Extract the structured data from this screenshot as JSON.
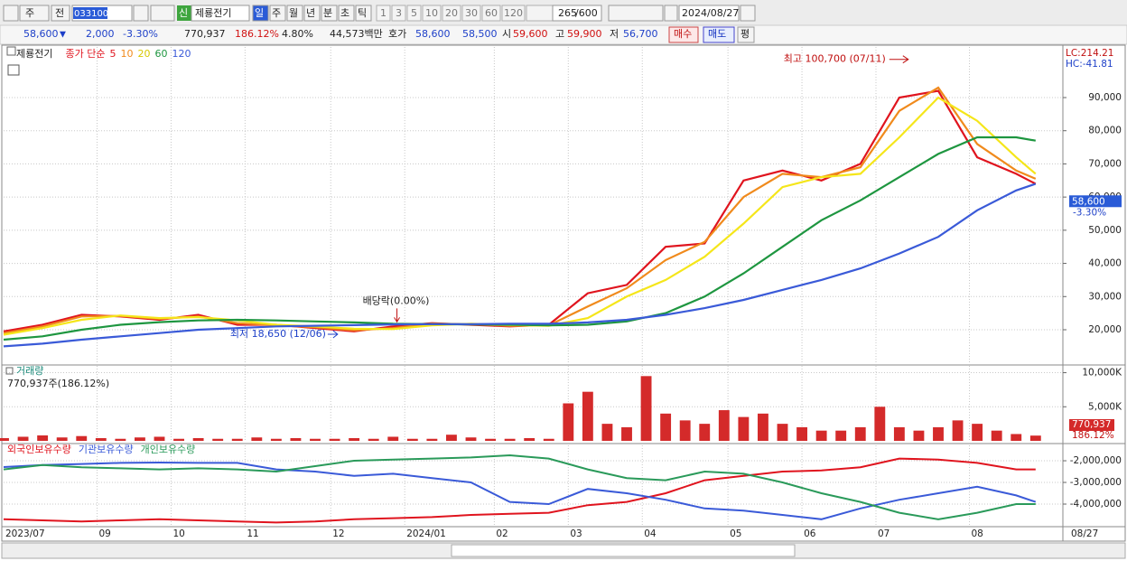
{
  "toolbar": {
    "period": "주",
    "prev": "전",
    "code": "033100",
    "new_tag": "신",
    "stock": "제룡전기",
    "intervals": [
      "일",
      "주",
      "월",
      "년",
      "분",
      "초",
      "틱"
    ],
    "minutes": [
      "1",
      "3",
      "5",
      "10",
      "20",
      "30",
      "60",
      "120"
    ],
    "count": "265",
    "max": "/600",
    "date": "2024/08/27"
  },
  "quote": {
    "price": "58,600",
    "arrow": "▼",
    "change": "2,000",
    "rate": "-3.30%",
    "volume": "770,937",
    "volume_rate": "186.12%",
    "turnover": "4.80%",
    "amount": "44,573백만",
    "ask_label": "호가",
    "ask": "58,600",
    "bid": "58,500",
    "open_label": "시",
    "open": "59,600",
    "high_label": "고",
    "high": "59,900",
    "low_label": "저",
    "low": "56,700",
    "buy": "매수",
    "sell": "매도",
    "avg": "평"
  },
  "chart_data": [
    {
      "type": "line",
      "name": "제룡전기",
      "legend_title": "종가 단순",
      "grid": true,
      "x": [
        0,
        10,
        20,
        30,
        40,
        50,
        60,
        70,
        80,
        90,
        100,
        110,
        120,
        130,
        140,
        150,
        160,
        170,
        180,
        190,
        200,
        210,
        220,
        230,
        240,
        250,
        260,
        265
      ],
      "xlim": [
        0,
        272
      ],
      "ylim": [
        9650,
        105250
      ],
      "yticks": [
        {
          "value": 20000,
          "label": "20,000"
        },
        {
          "value": 30000,
          "label": "30,000"
        },
        {
          "value": 40000,
          "label": "40,000"
        },
        {
          "value": 50000,
          "label": "50,000"
        },
        {
          "value": 60000,
          "label": "60,000"
        },
        {
          "value": 70000,
          "label": "70,000"
        },
        {
          "value": 80000,
          "label": "80,000"
        },
        {
          "value": 90000,
          "label": "90,000"
        }
      ],
      "series": [
        {
          "name": "5",
          "color": "#e0141e",
          "values": [
            19500,
            21500,
            24500,
            24000,
            23000,
            24500,
            21500,
            21500,
            20500,
            19500,
            21000,
            22000,
            21500,
            21000,
            21500,
            31000,
            33500,
            45000,
            46000,
            65000,
            68000,
            65000,
            70000,
            90000,
            92000,
            72000,
            67000,
            64000
          ]
        },
        {
          "name": "10",
          "color": "#f08a1c",
          "values": [
            19000,
            21000,
            24000,
            24200,
            23300,
            24000,
            22000,
            21300,
            20800,
            19800,
            20500,
            21800,
            21700,
            21200,
            21300,
            27000,
            32500,
            41000,
            46500,
            60000,
            67000,
            66000,
            69000,
            86000,
            93000,
            76000,
            68000,
            65500
          ]
        },
        {
          "name": "20",
          "color": "#f5e61a",
          "values": [
            18500,
            20500,
            23000,
            24300,
            23500,
            23800,
            22800,
            21500,
            21000,
            20300,
            20200,
            21300,
            21800,
            21400,
            21200,
            23500,
            30000,
            35000,
            42000,
            52000,
            63000,
            66000,
            67000,
            78000,
            90000,
            83000,
            72000,
            67000
          ]
        },
        {
          "name": "60",
          "color": "#1e9640",
          "values": [
            17000,
            18000,
            20000,
            21500,
            22300,
            22800,
            23000,
            22800,
            22500,
            22200,
            21800,
            21700,
            21600,
            21500,
            21300,
            21500,
            22500,
            25000,
            30000,
            37000,
            45000,
            53000,
            59000,
            66000,
            73000,
            78000,
            78000,
            77000
          ]
        },
        {
          "name": "120",
          "color": "#3a5ad8",
          "values": [
            15000,
            15800,
            17000,
            18000,
            19000,
            20000,
            20500,
            21000,
            21200,
            21400,
            21600,
            21700,
            21700,
            21800,
            21800,
            22200,
            23000,
            24500,
            26500,
            29000,
            32000,
            35000,
            38500,
            43000,
            48000,
            56000,
            62000,
            64000
          ]
        }
      ],
      "high": {
        "label": "최고 100,700 (07/11)",
        "x": 233,
        "value": 100700
      },
      "low": {
        "label": "최저 18,650 (12/06)",
        "x": 86,
        "value": 18650
      },
      "dividend": {
        "label": "배당락(0.00%)",
        "x": 101,
        "value": 21000
      },
      "lc": "LC:214.21",
      "hc": "HC:-41.81",
      "last": {
        "value": 58600,
        "label": "58,600"
      },
      "last_rate": "-3.30%"
    },
    {
      "type": "bar",
      "name": "거래량",
      "summary": "770,937주(186.12%)",
      "color": "#d42a2a",
      "grid": true,
      "x": [
        0,
        5,
        10,
        15,
        20,
        25,
        30,
        35,
        40,
        45,
        50,
        55,
        60,
        65,
        70,
        75,
        80,
        85,
        90,
        95,
        100,
        105,
        110,
        115,
        120,
        125,
        130,
        135,
        140,
        145,
        150,
        155,
        160,
        165,
        170,
        175,
        180,
        185,
        190,
        195,
        200,
        205,
        210,
        215,
        220,
        225,
        230,
        235,
        240,
        245,
        250,
        255,
        260,
        265
      ],
      "xlim": [
        0,
        272
      ],
      "ylim": [
        0,
        11000000
      ],
      "yticks": [
        {
          "value": 5000000,
          "label": "5,000K"
        },
        {
          "value": 10000000,
          "label": "10,000K"
        }
      ],
      "values": [
        400000,
        600000,
        800000,
        500000,
        700000,
        400000,
        300000,
        500000,
        600000,
        300000,
        400000,
        300000,
        300000,
        500000,
        300000,
        400000,
        300000,
        300000,
        400000,
        300000,
        600000,
        300000,
        300000,
        900000,
        500000,
        300000,
        300000,
        400000,
        300000,
        5500000,
        7200000,
        2500000,
        2000000,
        9500000,
        4000000,
        3000000,
        2500000,
        4500000,
        3500000,
        4000000,
        2500000,
        2000000,
        1500000,
        1500000,
        2000000,
        5000000,
        2000000,
        1500000,
        2000000,
        3000000,
        2500000,
        1500000,
        1000000,
        770937
      ],
      "last": {
        "value": 770937,
        "label": "770,937"
      },
      "last_rate": "186.12%"
    },
    {
      "type": "line",
      "grid": true,
      "x": [
        0,
        10,
        20,
        30,
        40,
        50,
        60,
        70,
        80,
        90,
        100,
        110,
        120,
        130,
        140,
        150,
        160,
        170,
        180,
        190,
        200,
        210,
        220,
        230,
        240,
        250,
        260,
        265
      ],
      "xlim": [
        0,
        272
      ],
      "ylim": [
        -5000000,
        -1290000
      ],
      "yticks": [
        {
          "value": -4000000,
          "label": "-4,000,000"
        },
        {
          "value": -3000000,
          "label": "-3,000,000"
        },
        {
          "value": -2000000,
          "label": "-2,000,000"
        }
      ],
      "xticks": [
        {
          "value": 0,
          "label": "2023/07"
        },
        {
          "value": 24,
          "label": "09"
        },
        {
          "value": 43,
          "label": "10"
        },
        {
          "value": 62,
          "label": "11"
        },
        {
          "value": 84,
          "label": "12"
        },
        {
          "value": 103,
          "label": "2024/01"
        },
        {
          "value": 126,
          "label": "02"
        },
        {
          "value": 145,
          "label": "03"
        },
        {
          "value": 164,
          "label": "04"
        },
        {
          "value": 186,
          "label": "05"
        },
        {
          "value": 205,
          "label": "06"
        },
        {
          "value": 224,
          "label": "07"
        },
        {
          "value": 248,
          "label": "08"
        }
      ],
      "date_label": "08/27",
      "series": [
        {
          "name": "외국인보유수량",
          "color": "#e0141e",
          "values": [
            -4700000,
            -4750000,
            -4800000,
            -4750000,
            -4700000,
            -4750000,
            -4800000,
            -4850000,
            -4800000,
            -4700000,
            -4650000,
            -4600000,
            -4500000,
            -4450000,
            -4400000,
            -4050000,
            -3900000,
            -3500000,
            -2900000,
            -2700000,
            -2500000,
            -2450000,
            -2300000,
            -1900000,
            -1950000,
            -2100000,
            -2400000,
            -2400000
          ]
        },
        {
          "name": "기관보유수량",
          "color": "#3a5ad8",
          "values": [
            -2290000,
            -2200000,
            -2150000,
            -2100000,
            -2080000,
            -2100000,
            -2100000,
            -2400000,
            -2500000,
            -2700000,
            -2600000,
            -2800000,
            -3000000,
            -3900000,
            -4000000,
            -3300000,
            -3500000,
            -3800000,
            -4200000,
            -4300000,
            -4500000,
            -4700000,
            -4200000,
            -3800000,
            -3500000,
            -3200000,
            -3600000,
            -3900000
          ]
        },
        {
          "name": "개인보유수량",
          "color": "#2a9a5a",
          "values": [
            -2400000,
            -2200000,
            -2300000,
            -2350000,
            -2400000,
            -2350000,
            -2400000,
            -2500000,
            -2250000,
            -2000000,
            -1950000,
            -1900000,
            -1850000,
            -1750000,
            -1900000,
            -2400000,
            -2800000,
            -2900000,
            -2500000,
            -2600000,
            -3000000,
            -3500000,
            -3900000,
            -4400000,
            -4700000,
            -4400000,
            -4000000,
            -4000000
          ]
        }
      ]
    }
  ]
}
